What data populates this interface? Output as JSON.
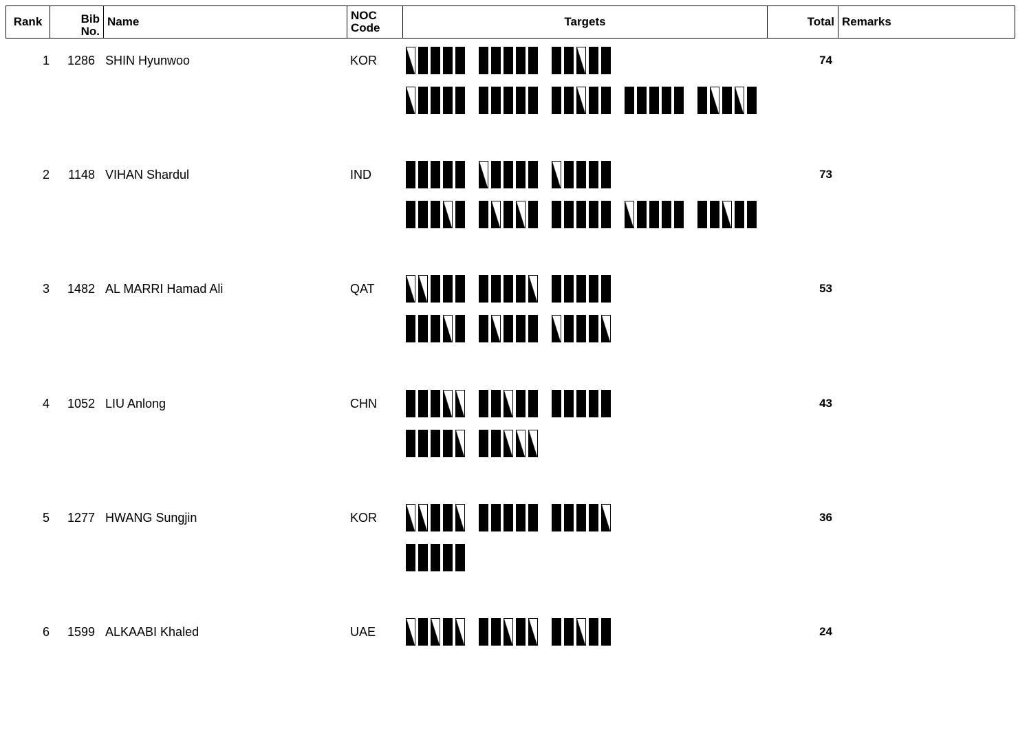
{
  "headers": {
    "rank": "Rank",
    "bib_line1": "Bib",
    "bib_line2": "No.",
    "name": "Name",
    "noc_line1": "NOC",
    "noc_line2": "Code",
    "targets": "Targets",
    "total": "Total",
    "remarks": "Remarks"
  },
  "rows": [
    {
      "rank": "1",
      "bib": "1286",
      "name": "SHIN Hyunwoo",
      "noc": "KOR",
      "total": "74",
      "remarks": "",
      "targets": [
        [
          "01111",
          "11111",
          "11011"
        ],
        [
          "01111",
          "11111",
          "11011",
          "11111",
          "10101"
        ]
      ]
    },
    {
      "rank": "2",
      "bib": "1148",
      "name": "VIHAN Shardul",
      "noc": "IND",
      "total": "73",
      "remarks": "",
      "targets": [
        [
          "11111",
          "01111",
          "01111"
        ],
        [
          "11101",
          "10101",
          "11111",
          "01111",
          "11011"
        ]
      ]
    },
    {
      "rank": "3",
      "bib": "1482",
      "name": "AL MARRI Hamad Ali",
      "noc": "QAT",
      "total": "53",
      "remarks": "",
      "targets": [
        [
          "00111",
          "11110",
          "11111"
        ],
        [
          "11101",
          "10111",
          "01110"
        ]
      ]
    },
    {
      "rank": "4",
      "bib": "1052",
      "name": "LIU Anlong",
      "noc": "CHN",
      "total": "43",
      "remarks": "",
      "targets": [
        [
          "11100",
          "11011",
          "11111"
        ],
        [
          "11110",
          "11000"
        ]
      ]
    },
    {
      "rank": "5",
      "bib": "1277",
      "name": "HWANG Sungjin",
      "noc": "KOR",
      "total": "36",
      "remarks": "",
      "targets": [
        [
          "00110",
          "11111",
          "11110"
        ],
        [
          "11111"
        ]
      ]
    },
    {
      "rank": "6",
      "bib": "1599",
      "name": "ALKAABI Khaled",
      "noc": "UAE",
      "total": "24",
      "remarks": "",
      "targets": [
        [
          "01010",
          "11010",
          "11011"
        ]
      ]
    }
  ]
}
